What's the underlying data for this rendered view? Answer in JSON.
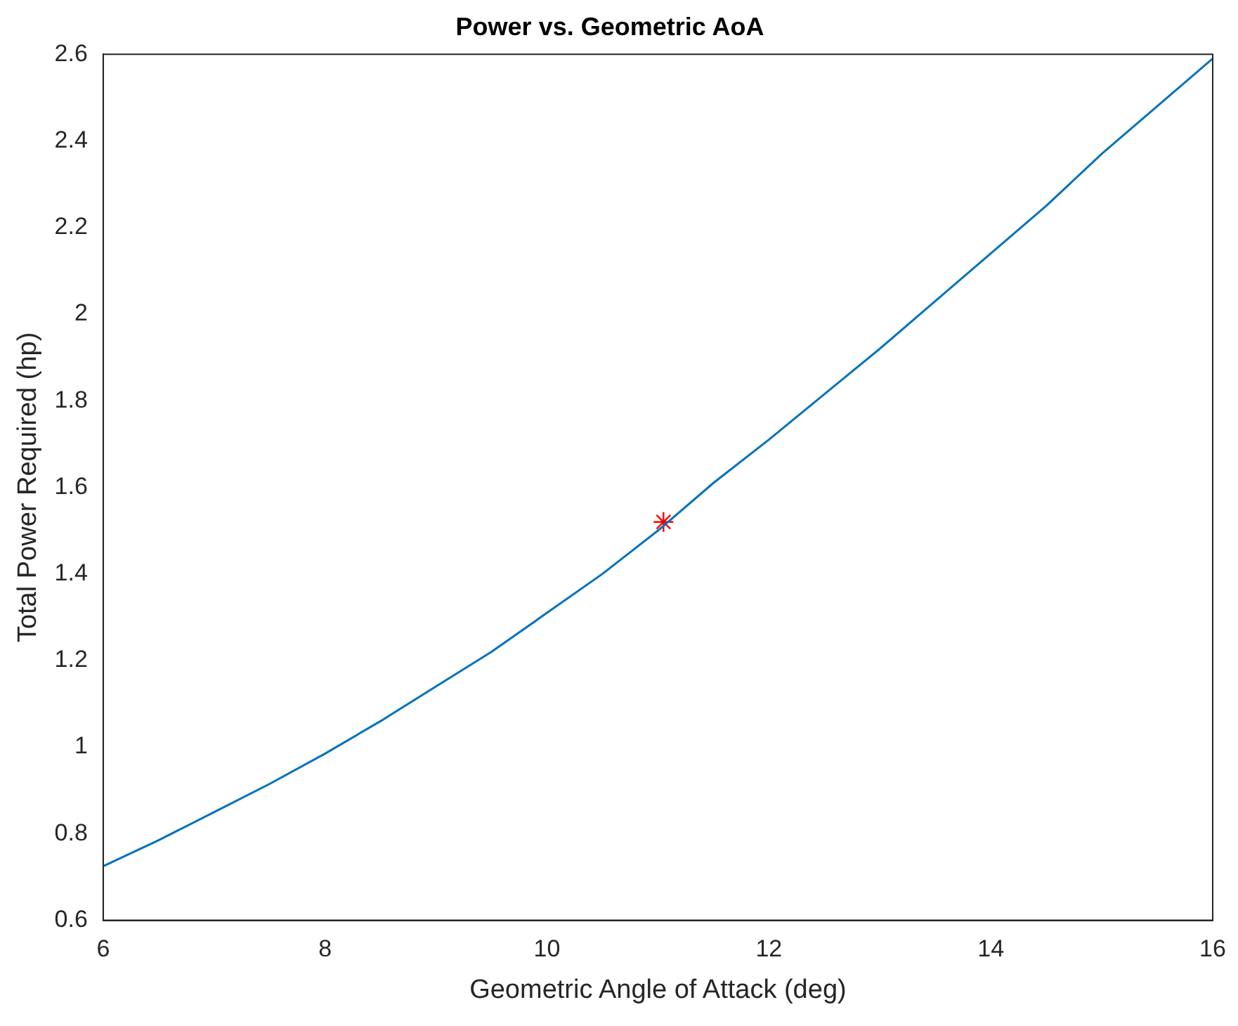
{
  "chart_data": {
    "type": "line",
    "title": "Power vs. Geometric AoA",
    "xlabel": "Geometric Angle of Attack (deg)",
    "ylabel": "Total Power Required (hp)",
    "xlim": [
      6,
      16
    ],
    "xticks": [
      6,
      8,
      10,
      12,
      14,
      16
    ],
    "ylim": [
      0.6,
      2.6
    ],
    "yticks": [
      0.6,
      0.8,
      1,
      1.2,
      1.4,
      1.6,
      1.8,
      2,
      2.2,
      2.4,
      2.6
    ],
    "grid": false,
    "legend": false,
    "series": [
      {
        "type": "line",
        "color": "#0072bd",
        "marker": "none",
        "line_style": "solid",
        "x": [
          6,
          6.5,
          7,
          7.5,
          8,
          8.5,
          9,
          9.5,
          10,
          10.5,
          11,
          11.5,
          12,
          12.5,
          13,
          13.5,
          14,
          14.5,
          15,
          15.5,
          16
        ],
        "values": [
          0.725,
          0.785,
          0.85,
          0.915,
          0.985,
          1.06,
          1.14,
          1.22,
          1.31,
          1.4,
          1.5,
          1.61,
          1.71,
          1.815,
          1.92,
          2.03,
          2.14,
          2.25,
          2.37,
          2.48,
          2.59
        ]
      },
      {
        "type": "scatter",
        "color": "#ff0000",
        "marker": "cross",
        "x": [
          11.05
        ],
        "values": [
          1.52
        ]
      }
    ]
  }
}
